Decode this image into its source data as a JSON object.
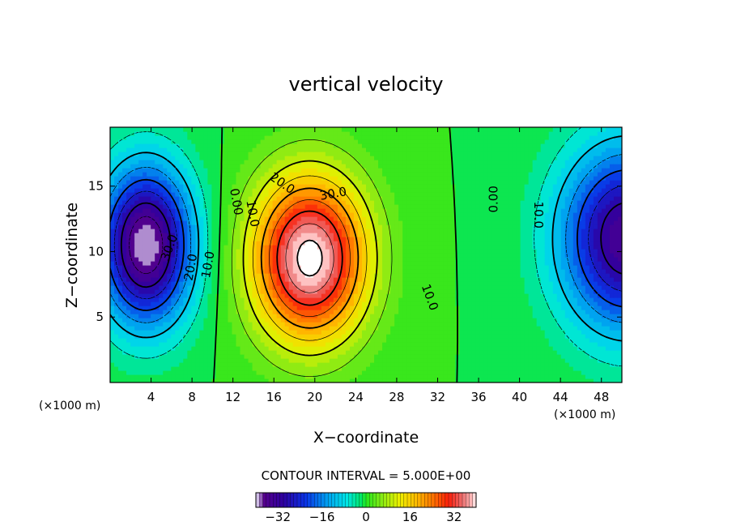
{
  "chart_data": {
    "type": "heatmap",
    "subtype": "filled-contour",
    "title": "vertical velocity",
    "xlabel": "X−coordinate",
    "ylabel": "Z−coordinate",
    "x_unit_label": "(×1000 m)",
    "z_unit_label": "(×1000 m)",
    "xlim": [
      0,
      50
    ],
    "ylim": [
      0,
      19.5
    ],
    "x_ticks": [
      4,
      8,
      12,
      16,
      20,
      24,
      28,
      32,
      36,
      40,
      44,
      48
    ],
    "x_tick_labels": [
      "4",
      "8",
      "12",
      "16",
      "20",
      "24",
      "28",
      "32",
      "36",
      "40",
      "44",
      "48"
    ],
    "y_ticks": [
      5,
      10,
      15
    ],
    "y_tick_labels": [
      "5",
      "10",
      "15"
    ],
    "contour_interval_text": "CONTOUR INTERVAL = 5.000E+00",
    "contour_interval": 5,
    "colorbar": {
      "min": -40,
      "max": 40,
      "ticks": [
        -32,
        -16,
        0,
        16,
        32
      ],
      "tick_labels": [
        "−32",
        "−16",
        "0",
        "16",
        "32"
      ]
    },
    "features": [
      {
        "name": "updraft",
        "x_center": 19.5,
        "z_center": 9.5,
        "peak": 42,
        "x_halfwidth": 5.5,
        "z_halfwidth": 6.2
      },
      {
        "name": "downdraft-left",
        "x_center": 3.5,
        "z_center": 10.5,
        "peak": -40,
        "x_halfwidth": 4.5,
        "z_halfwidth": 6.0
      },
      {
        "name": "downdraft-right",
        "x_center": 50.5,
        "z_center": 11.0,
        "peak": -35,
        "x_halfwidth": 6.5,
        "z_halfwidth": 7.0
      }
    ],
    "contour_labels": [
      {
        "text": "30.0",
        "x": 5.8,
        "z": 10.3,
        "angle": 70
      },
      {
        "text": "20.0",
        "x": 7.9,
        "z": 8.8,
        "angle": 80
      },
      {
        "text": "10.0",
        "x": 9.6,
        "z": 9.0,
        "angle": 80
      },
      {
        "text": "0.00",
        "x": 12.3,
        "z": 13.8,
        "angle": -80
      },
      {
        "text": "10.0",
        "x": 13.9,
        "z": 12.9,
        "angle": -80
      },
      {
        "text": "20.0",
        "x": 16.8,
        "z": 15.2,
        "angle": -35
      },
      {
        "text": "30.0",
        "x": 21.8,
        "z": 14.4,
        "angle": 10
      },
      {
        "text": "10.0",
        "x": 31.2,
        "z": 6.5,
        "angle": -70
      },
      {
        "text": "0.00",
        "x": 37.5,
        "z": 14.0,
        "angle": 90
      },
      {
        "text": "10.0",
        "x": 41.8,
        "z": 12.8,
        "angle": -90
      }
    ]
  }
}
